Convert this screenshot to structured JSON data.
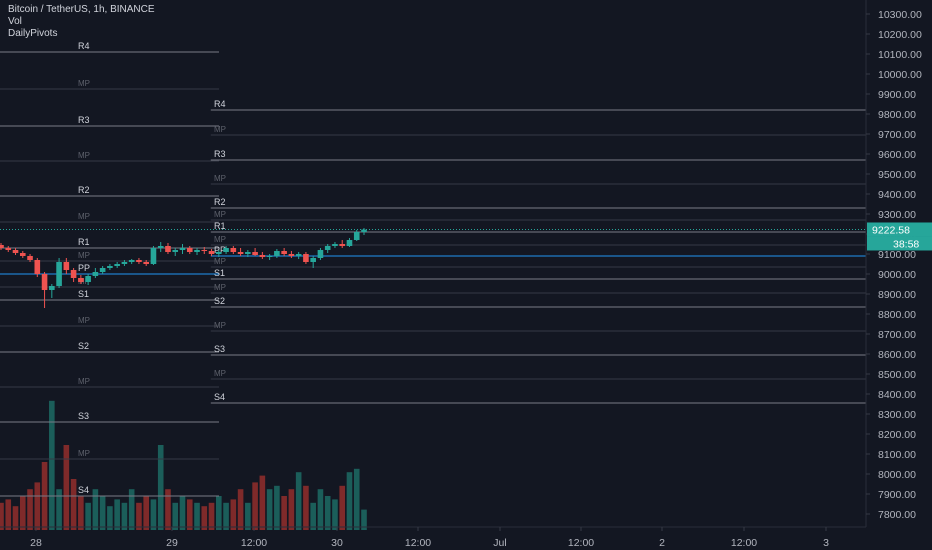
{
  "header": {
    "symbol": "Bitcoin / TetherUS, 1h, BINANCE",
    "indicator_vol": "Vol",
    "indicator_pivots": "DailyPivots"
  },
  "price_badge": {
    "price": "9222.58",
    "countdown": "38:58",
    "color": "#26a69a"
  },
  "colors": {
    "up": "#26a69a",
    "down": "#ef5350",
    "vol_up": "#1b5e5a",
    "vol_down": "#7f2a2a",
    "pp_line": "#2196f3",
    "pivot_line": "#b2b5be",
    "bg": "#131722"
  },
  "chart_data": {
    "type": "candlestick",
    "ylim": [
      7740,
      10360
    ],
    "yticks": [
      "10300.00",
      "10200.00",
      "10100.00",
      "10000.00",
      "9900.00",
      "9800.00",
      "9700.00",
      "9600.00",
      "9500.00",
      "9400.00",
      "9300.00",
      "9200.00",
      "9100.00",
      "9000.00",
      "8900.00",
      "8800.00",
      "8700.00",
      "8600.00",
      "8500.00",
      "8400.00",
      "8300.00",
      "8200.00",
      "8100.00",
      "8000.00",
      "7900.00",
      "7800.00"
    ],
    "xticks": [
      "28",
      "29",
      "12:00",
      "30",
      "12:00",
      "Jul",
      "12:00",
      "2",
      "12:00",
      "3"
    ],
    "candles": [
      [
        9145,
        9155,
        9120,
        9130
      ],
      [
        9130,
        9140,
        9110,
        9120
      ],
      [
        9120,
        9130,
        9095,
        9105
      ],
      [
        9105,
        9115,
        9080,
        9090
      ],
      [
        9090,
        9100,
        9060,
        9070
      ],
      [
        9070,
        9080,
        8985,
        9000
      ],
      [
        9000,
        9010,
        8830,
        8920
      ],
      [
        8920,
        8950,
        8880,
        8940
      ],
      [
        8940,
        9080,
        8930,
        9060
      ],
      [
        9060,
        9080,
        9000,
        9020
      ],
      [
        9020,
        9030,
        8960,
        8980
      ],
      [
        8980,
        8995,
        8950,
        8960
      ],
      [
        8960,
        9000,
        8945,
        8990
      ],
      [
        8990,
        9030,
        8980,
        9010
      ],
      [
        9010,
        9040,
        9000,
        9030
      ],
      [
        9030,
        9050,
        9020,
        9040
      ],
      [
        9040,
        9060,
        9030,
        9050
      ],
      [
        9050,
        9070,
        9040,
        9060
      ],
      [
        9060,
        9075,
        9050,
        9070
      ],
      [
        9070,
        9080,
        9050,
        9060
      ],
      [
        9060,
        9070,
        9040,
        9050
      ],
      [
        9050,
        9140,
        9045,
        9130
      ],
      [
        9130,
        9160,
        9110,
        9140
      ],
      [
        9140,
        9155,
        9100,
        9110
      ],
      [
        9110,
        9130,
        9090,
        9120
      ],
      [
        9120,
        9150,
        9100,
        9130
      ],
      [
        9130,
        9140,
        9100,
        9110
      ],
      [
        9110,
        9130,
        9095,
        9120
      ],
      [
        9120,
        9135,
        9100,
        9115
      ],
      [
        9115,
        9125,
        9090,
        9100
      ],
      [
        9100,
        9120,
        9085,
        9110
      ],
      [
        9110,
        9140,
        9100,
        9130
      ],
      [
        9130,
        9140,
        9100,
        9110
      ],
      [
        9110,
        9130,
        9090,
        9100
      ],
      [
        9100,
        9120,
        9085,
        9110
      ],
      [
        9110,
        9130,
        9090,
        9095
      ],
      [
        9095,
        9110,
        9075,
        9085
      ],
      [
        9085,
        9100,
        9070,
        9090
      ],
      [
        9090,
        9125,
        9080,
        9115
      ],
      [
        9115,
        9130,
        9090,
        9100
      ],
      [
        9100,
        9115,
        9080,
        9090
      ],
      [
        9090,
        9110,
        9075,
        9100
      ],
      [
        9100,
        9110,
        9050,
        9060
      ],
      [
        9060,
        9090,
        9030,
        9080
      ],
      [
        9080,
        9130,
        9070,
        9120
      ],
      [
        9120,
        9150,
        9105,
        9140
      ],
      [
        9140,
        9160,
        9130,
        9150
      ],
      [
        9150,
        9170,
        9130,
        9140
      ],
      [
        9140,
        9180,
        9135,
        9170
      ],
      [
        9170,
        9220,
        9165,
        9210
      ],
      [
        9210,
        9230,
        9195,
        9222
      ]
    ],
    "volumes": [
      8,
      9,
      7,
      10,
      12,
      14,
      20,
      38,
      12,
      25,
      15,
      10,
      8,
      12,
      10,
      7,
      9,
      8,
      12,
      8,
      10,
      9,
      25,
      12,
      8,
      10,
      9,
      8,
      7,
      8,
      10,
      8,
      9,
      12,
      8,
      14,
      16,
      12,
      13,
      10,
      12,
      17,
      13,
      8,
      12,
      10,
      9,
      13,
      17,
      18,
      6
    ],
    "pivots": [
      {
        "label": "R4",
        "y": 10110,
        "start": 0,
        "end": 32
      },
      {
        "label": "MP",
        "y": 9925,
        "start": 0,
        "end": 32,
        "mid": true
      },
      {
        "label": "R3",
        "y": 9740,
        "start": 0,
        "end": 32
      },
      {
        "label": "MP",
        "y": 9565,
        "start": 0,
        "end": 32,
        "mid": true
      },
      {
        "label": "R2",
        "y": 9390,
        "start": 0,
        "end": 32
      },
      {
        "label": "MP",
        "y": 9260,
        "start": 0,
        "end": 32,
        "mid": true
      },
      {
        "label": "R1",
        "y": 9130,
        "start": 0,
        "end": 32
      },
      {
        "label": "MP",
        "y": 9065,
        "start": 0,
        "end": 32,
        "mid": true
      },
      {
        "label": "PP",
        "y": 9000,
        "start": 0,
        "end": 32,
        "pp": true
      },
      {
        "label": "MP",
        "y": 8935,
        "start": 0,
        "end": 32,
        "mid": true
      },
      {
        "label": "S1",
        "y": 8870,
        "start": 0,
        "end": 32
      },
      {
        "label": "MP",
        "y": 8740,
        "start": 0,
        "end": 32,
        "mid": true
      },
      {
        "label": "S2",
        "y": 8610,
        "start": 0,
        "end": 32
      },
      {
        "label": "MP",
        "y": 8435,
        "start": 0,
        "end": 32,
        "mid": true
      },
      {
        "label": "S3",
        "y": 8260,
        "start": 0,
        "end": 32
      },
      {
        "label": "MP",
        "y": 8075,
        "start": 0,
        "end": 32,
        "mid": true
      },
      {
        "label": "S4",
        "y": 7890,
        "start": 0,
        "end": 32
      },
      {
        "label": "R4",
        "y": 9820,
        "start": 30,
        "end": 124
      },
      {
        "label": "MP",
        "y": 9695,
        "start": 30,
        "end": 124,
        "mid": true
      },
      {
        "label": "R3",
        "y": 9570,
        "start": 30,
        "end": 124
      },
      {
        "label": "MP",
        "y": 9450,
        "start": 30,
        "end": 124,
        "mid": true
      },
      {
        "label": "R2",
        "y": 9330,
        "start": 30,
        "end": 124
      },
      {
        "label": "MP",
        "y": 9270,
        "start": 30,
        "end": 124,
        "mid": true
      },
      {
        "label": "R1",
        "y": 9210,
        "start": 30,
        "end": 124
      },
      {
        "label": "MP",
        "y": 9145,
        "start": 30,
        "end": 124,
        "mid": true
      },
      {
        "label": "PP",
        "y": 9090,
        "start": 30,
        "end": 124,
        "pp": true
      },
      {
        "label": "MP",
        "y": 9035,
        "start": 30,
        "end": 124,
        "mid": true
      },
      {
        "label": "S1",
        "y": 8975,
        "start": 30,
        "end": 124
      },
      {
        "label": "MP",
        "y": 8905,
        "start": 30,
        "end": 124,
        "mid": true
      },
      {
        "label": "S2",
        "y": 8835,
        "start": 30,
        "end": 124
      },
      {
        "label": "MP",
        "y": 8715,
        "start": 30,
        "end": 124,
        "mid": true
      },
      {
        "label": "S3",
        "y": 8595,
        "start": 30,
        "end": 124
      },
      {
        "label": "MP",
        "y": 8475,
        "start": 30,
        "end": 124,
        "mid": true
      },
      {
        "label": "S4",
        "y": 8355,
        "start": 30,
        "end": 124
      }
    ]
  }
}
